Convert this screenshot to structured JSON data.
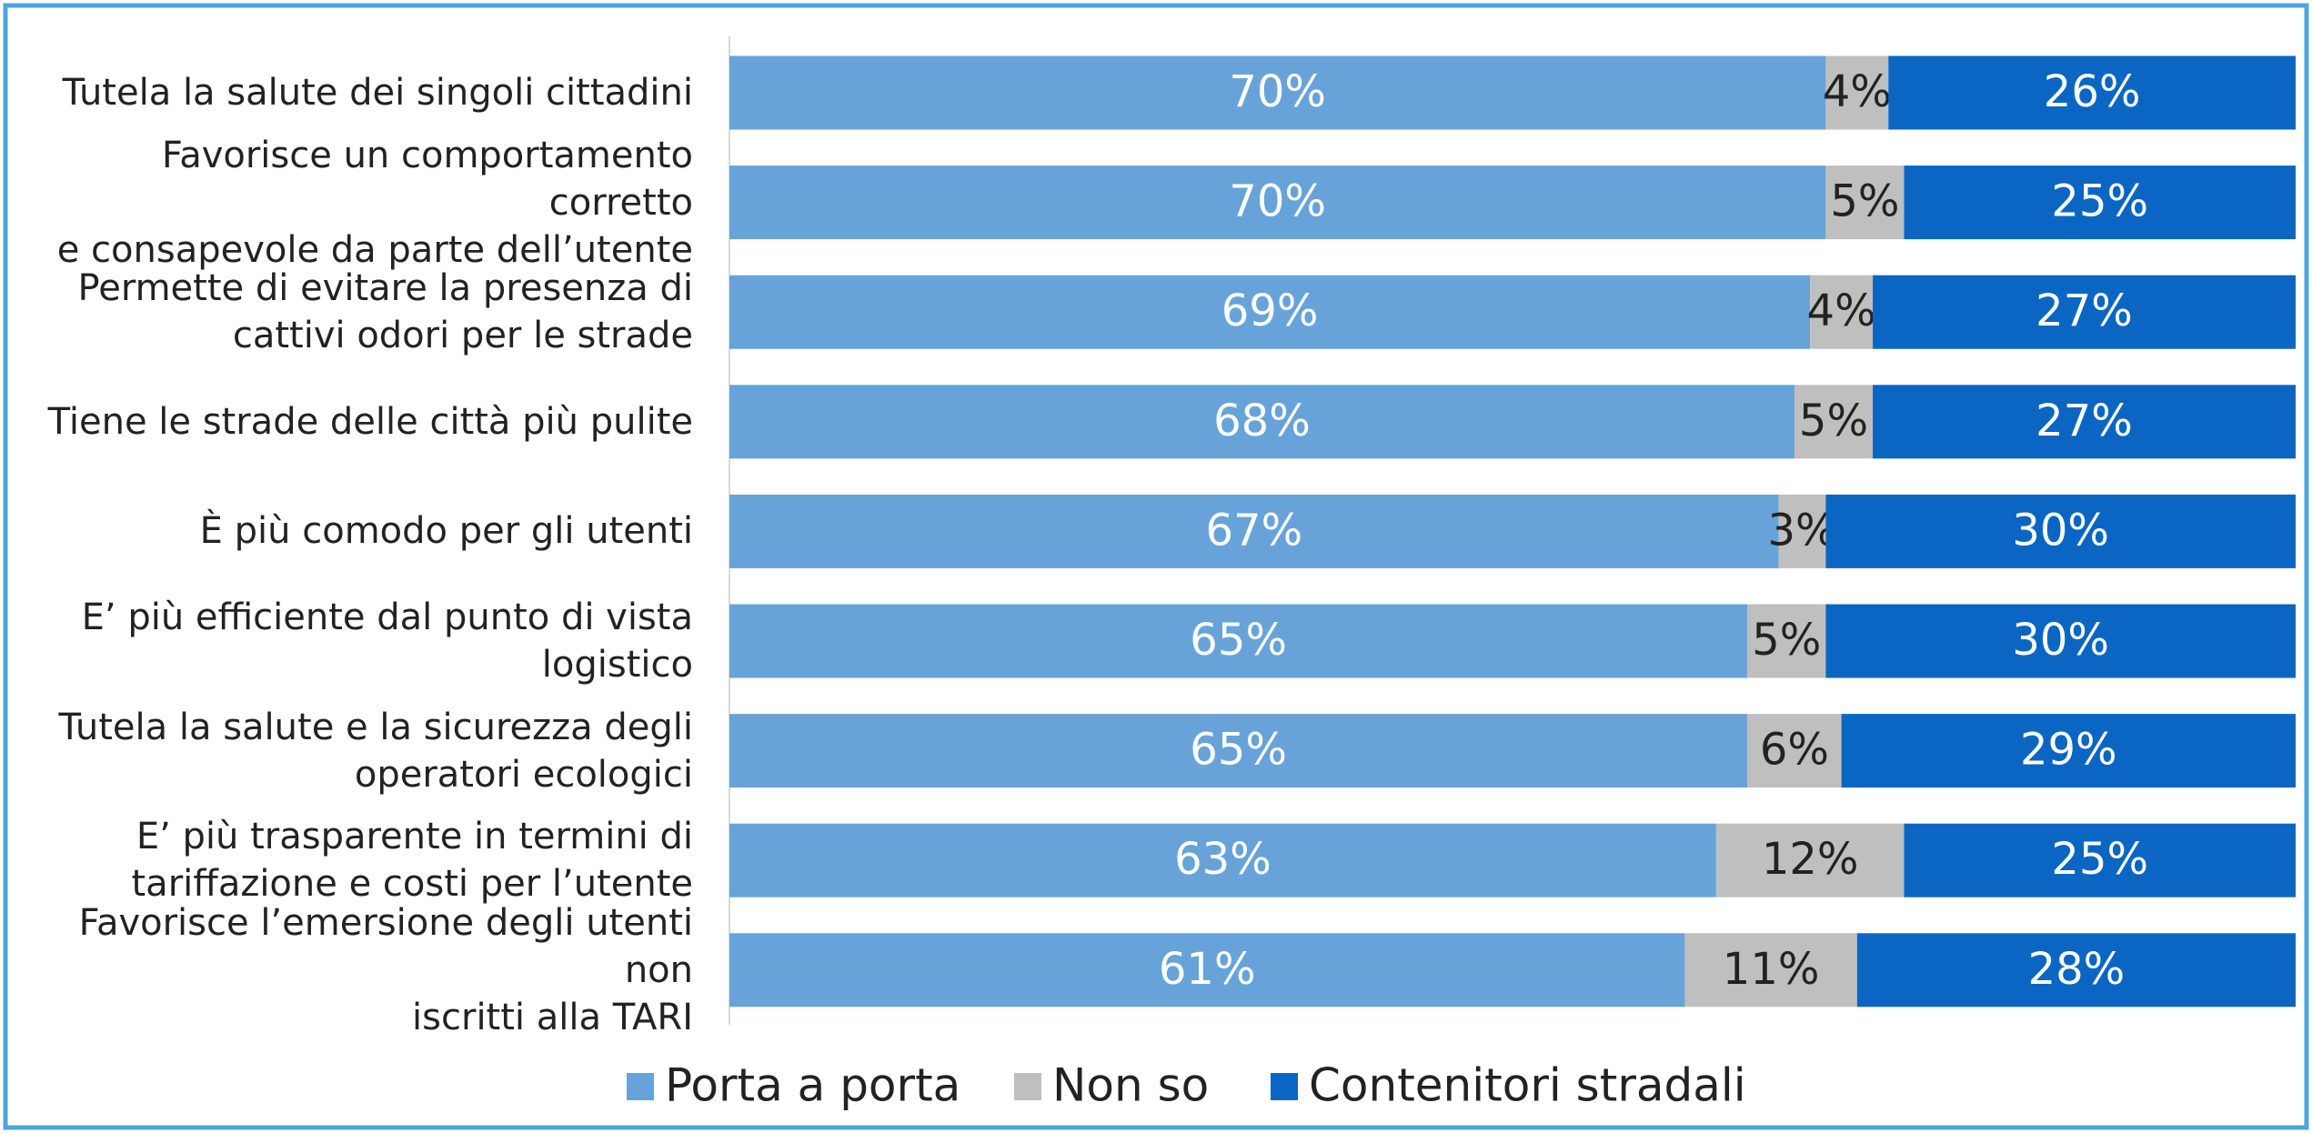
{
  "chart_data": {
    "type": "stacked_barh",
    "categories": [
      "Tutela la salute dei singoli cittadini",
      "Favorisce un comportamento corretto\ne consapevole da parte dell’utente",
      "Permette di evitare la presenza di\ncattivi odori per le strade",
      "Tiene le strade delle città più pulite",
      "È più comodo per gli utenti",
      "E’ più efficiente dal punto di vista\nlogistico",
      "Tutela la salute e la sicurezza degli\noperatori ecologici",
      "E’ più trasparente in termini di\ntariffazione e costi per l’utente",
      "Favorisce l’emersione degli utenti non\niscritti alla TARI"
    ],
    "series": [
      {
        "name": "Porta a porta",
        "color": "#67a3d9",
        "label_color": "#ffffff",
        "values": [
          70,
          70,
          69,
          68,
          67,
          65,
          65,
          63,
          61
        ],
        "value_labels": [
          "70%",
          "70%",
          "69%",
          "68%",
          "67%",
          "65%",
          "65%",
          "63%",
          "61%"
        ]
      },
      {
        "name": "Non so",
        "color": "#bfbfbf",
        "label_color": "#222222",
        "values": [
          4,
          5,
          4,
          5,
          3,
          5,
          6,
          12,
          11
        ],
        "value_labels": [
          "4%",
          "5%",
          "4%",
          "5%",
          "3%",
          "5%",
          "6%",
          "12%",
          "11%"
        ]
      },
      {
        "name": "Contenitori stradali",
        "color": "#0a66c2",
        "label_color": "#ffffff",
        "values": [
          26,
          25,
          27,
          27,
          30,
          30,
          29,
          25,
          28
        ],
        "value_labels": [
          "26%",
          "25%",
          "27%",
          "27%",
          "30%",
          "30%",
          "29%",
          "25%",
          "28%"
        ]
      }
    ],
    "xlim": [
      0,
      100
    ],
    "legend": "bottom"
  }
}
